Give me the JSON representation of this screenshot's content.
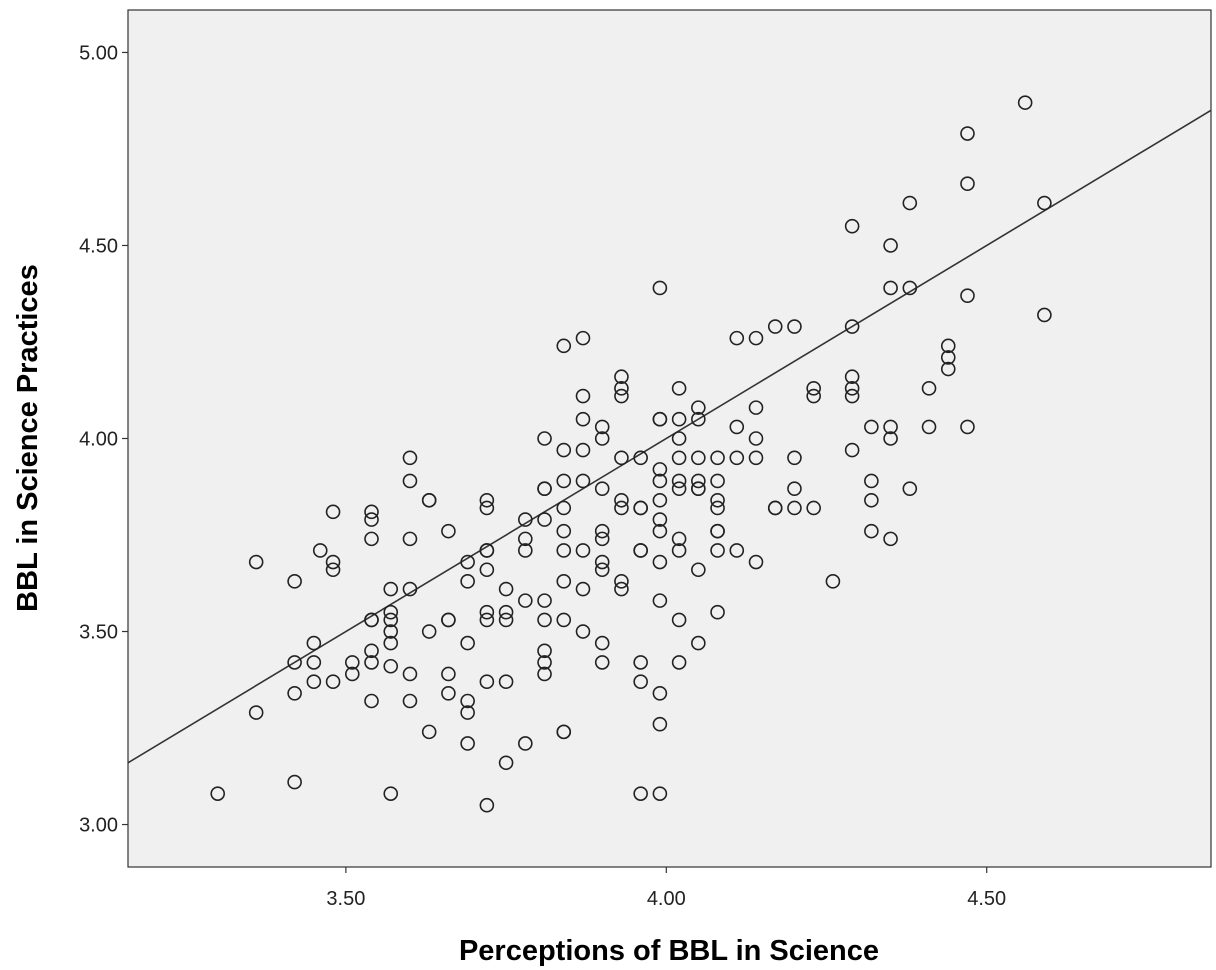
{
  "colors": {
    "page_background": "#ffffff",
    "plot_background": "#f0f0f0",
    "axis": "#333333",
    "marker_stroke": "#222222",
    "fit_line": "#333333"
  },
  "chart_data": {
    "type": "scatter",
    "title": "",
    "xlabel": "Perceptions of BBL in Science",
    "ylabel": "BBL in Science Practices",
    "xlim": [
      3.16,
      4.85
    ],
    "ylim": [
      2.89,
      5.11
    ],
    "x_ticks": [
      3.5,
      4.0,
      4.5
    ],
    "x_tick_labels": [
      "3.50",
      "4.00",
      "4.50"
    ],
    "y_ticks": [
      3.0,
      3.5,
      4.0,
      4.5,
      5.0
    ],
    "y_tick_labels": [
      "3.00",
      "3.50",
      "4.00",
      "4.50",
      "5.00"
    ],
    "grid": false,
    "legend": "none",
    "marker": "open-circle",
    "reference_line": {
      "type": "y=x",
      "label": ""
    },
    "series": [
      {
        "points": [
          [
            3.3,
            3.08
          ],
          [
            3.36,
            3.68
          ],
          [
            3.36,
            3.29
          ],
          [
            3.42,
            3.63
          ],
          [
            3.42,
            3.42
          ],
          [
            3.42,
            3.34
          ],
          [
            3.42,
            3.11
          ],
          [
            3.45,
            3.47
          ],
          [
            3.45,
            3.42
          ],
          [
            3.45,
            3.37
          ],
          [
            3.46,
            3.71
          ],
          [
            3.48,
            3.81
          ],
          [
            3.48,
            3.68
          ],
          [
            3.48,
            3.66
          ],
          [
            3.48,
            3.37
          ],
          [
            3.51,
            3.42
          ],
          [
            3.51,
            3.39
          ],
          [
            3.54,
            3.81
          ],
          [
            3.54,
            3.79
          ],
          [
            3.54,
            3.74
          ],
          [
            3.54,
            3.53
          ],
          [
            3.54,
            3.53
          ],
          [
            3.54,
            3.45
          ],
          [
            3.54,
            3.42
          ],
          [
            3.54,
            3.32
          ],
          [
            3.57,
            3.61
          ],
          [
            3.57,
            3.55
          ],
          [
            3.57,
            3.53
          ],
          [
            3.57,
            3.5
          ],
          [
            3.57,
            3.47
          ],
          [
            3.57,
            3.41
          ],
          [
            3.57,
            3.08
          ],
          [
            3.6,
            3.95
          ],
          [
            3.6,
            3.89
          ],
          [
            3.6,
            3.74
          ],
          [
            3.6,
            3.61
          ],
          [
            3.6,
            3.39
          ],
          [
            3.6,
            3.32
          ],
          [
            3.63,
            3.84
          ],
          [
            3.63,
            3.84
          ],
          [
            3.63,
            3.5
          ],
          [
            3.63,
            3.24
          ],
          [
            3.66,
            3.76
          ],
          [
            3.66,
            3.53
          ],
          [
            3.66,
            3.53
          ],
          [
            3.66,
            3.39
          ],
          [
            3.66,
            3.34
          ],
          [
            3.69,
            3.68
          ],
          [
            3.69,
            3.63
          ],
          [
            3.69,
            3.47
          ],
          [
            3.69,
            3.32
          ],
          [
            3.69,
            3.29
          ],
          [
            3.69,
            3.21
          ],
          [
            3.72,
            3.84
          ],
          [
            3.72,
            3.82
          ],
          [
            3.72,
            3.71
          ],
          [
            3.72,
            3.71
          ],
          [
            3.72,
            3.66
          ],
          [
            3.72,
            3.55
          ],
          [
            3.72,
            3.53
          ],
          [
            3.72,
            3.37
          ],
          [
            3.72,
            3.05
          ],
          [
            3.75,
            3.61
          ],
          [
            3.75,
            3.55
          ],
          [
            3.75,
            3.53
          ],
          [
            3.75,
            3.37
          ],
          [
            3.75,
            3.16
          ],
          [
            3.78,
            3.79
          ],
          [
            3.78,
            3.74
          ],
          [
            3.78,
            3.71
          ],
          [
            3.78,
            3.58
          ],
          [
            3.78,
            3.21
          ],
          [
            3.81,
            4.0
          ],
          [
            3.81,
            3.87
          ],
          [
            3.81,
            3.87
          ],
          [
            3.81,
            3.79
          ],
          [
            3.81,
            3.58
          ],
          [
            3.81,
            3.53
          ],
          [
            3.81,
            3.45
          ],
          [
            3.81,
            3.42
          ],
          [
            3.81,
            3.39
          ],
          [
            3.84,
            4.24
          ],
          [
            3.84,
            3.97
          ],
          [
            3.84,
            3.89
          ],
          [
            3.84,
            3.82
          ],
          [
            3.84,
            3.76
          ],
          [
            3.84,
            3.71
          ],
          [
            3.84,
            3.63
          ],
          [
            3.84,
            3.53
          ],
          [
            3.84,
            3.24
          ],
          [
            3.84,
            3.24
          ],
          [
            3.87,
            4.26
          ],
          [
            3.87,
            4.11
          ],
          [
            3.87,
            4.05
          ],
          [
            3.87,
            3.97
          ],
          [
            3.87,
            3.89
          ],
          [
            3.87,
            3.71
          ],
          [
            3.87,
            3.61
          ],
          [
            3.87,
            3.5
          ],
          [
            3.9,
            4.03
          ],
          [
            3.9,
            4.0
          ],
          [
            3.9,
            3.87
          ],
          [
            3.9,
            3.76
          ],
          [
            3.9,
            3.74
          ],
          [
            3.9,
            3.68
          ],
          [
            3.9,
            3.66
          ],
          [
            3.9,
            3.47
          ],
          [
            3.9,
            3.42
          ],
          [
            3.93,
            4.16
          ],
          [
            3.93,
            4.13
          ],
          [
            3.93,
            4.11
          ],
          [
            3.93,
            3.95
          ],
          [
            3.93,
            3.84
          ],
          [
            3.93,
            3.82
          ],
          [
            3.93,
            3.63
          ],
          [
            3.93,
            3.61
          ],
          [
            3.96,
            3.95
          ],
          [
            3.96,
            3.82
          ],
          [
            3.96,
            3.82
          ],
          [
            3.96,
            3.71
          ],
          [
            3.96,
            3.71
          ],
          [
            3.96,
            3.42
          ],
          [
            3.96,
            3.37
          ],
          [
            3.96,
            3.08
          ],
          [
            3.99,
            4.39
          ],
          [
            3.99,
            4.05
          ],
          [
            3.99,
            4.05
          ],
          [
            3.99,
            3.92
          ],
          [
            3.99,
            3.89
          ],
          [
            3.99,
            3.84
          ],
          [
            3.99,
            3.79
          ],
          [
            3.99,
            3.76
          ],
          [
            3.99,
            3.68
          ],
          [
            3.99,
            3.58
          ],
          [
            3.99,
            3.34
          ],
          [
            3.99,
            3.26
          ],
          [
            3.99,
            3.08
          ],
          [
            4.02,
            4.13
          ],
          [
            4.02,
            4.05
          ],
          [
            4.02,
            4.0
          ],
          [
            4.02,
            3.95
          ],
          [
            4.02,
            3.89
          ],
          [
            4.02,
            3.87
          ],
          [
            4.02,
            3.74
          ],
          [
            4.02,
            3.71
          ],
          [
            4.02,
            3.53
          ],
          [
            4.02,
            3.42
          ],
          [
            4.05,
            4.08
          ],
          [
            4.05,
            4.05
          ],
          [
            4.05,
            3.95
          ],
          [
            4.05,
            3.89
          ],
          [
            4.05,
            3.87
          ],
          [
            4.05,
            3.87
          ],
          [
            4.05,
            3.66
          ],
          [
            4.05,
            3.47
          ],
          [
            4.08,
            3.95
          ],
          [
            4.08,
            3.89
          ],
          [
            4.08,
            3.84
          ],
          [
            4.08,
            3.82
          ],
          [
            4.08,
            3.76
          ],
          [
            4.08,
            3.76
          ],
          [
            4.08,
            3.71
          ],
          [
            4.08,
            3.55
          ],
          [
            4.11,
            4.26
          ],
          [
            4.11,
            4.03
          ],
          [
            4.11,
            3.95
          ],
          [
            4.11,
            3.71
          ],
          [
            4.14,
            4.26
          ],
          [
            4.14,
            4.08
          ],
          [
            4.14,
            4.0
          ],
          [
            4.14,
            3.95
          ],
          [
            4.14,
            3.68
          ],
          [
            4.17,
            4.29
          ],
          [
            4.17,
            3.82
          ],
          [
            4.17,
            3.82
          ],
          [
            4.2,
            4.29
          ],
          [
            4.2,
            3.95
          ],
          [
            4.2,
            3.87
          ],
          [
            4.2,
            3.82
          ],
          [
            4.23,
            4.13
          ],
          [
            4.23,
            4.11
          ],
          [
            4.23,
            3.82
          ],
          [
            4.26,
            3.63
          ],
          [
            4.29,
            4.55
          ],
          [
            4.29,
            4.29
          ],
          [
            4.29,
            4.16
          ],
          [
            4.29,
            4.13
          ],
          [
            4.29,
            4.11
          ],
          [
            4.29,
            3.97
          ],
          [
            4.32,
            4.03
          ],
          [
            4.32,
            3.89
          ],
          [
            4.32,
            3.84
          ],
          [
            4.32,
            3.76
          ],
          [
            4.35,
            4.5
          ],
          [
            4.35,
            4.39
          ],
          [
            4.35,
            4.03
          ],
          [
            4.35,
            4.0
          ],
          [
            4.35,
            3.74
          ],
          [
            4.38,
            4.61
          ],
          [
            4.38,
            4.39
          ],
          [
            4.38,
            3.87
          ],
          [
            4.41,
            4.13
          ],
          [
            4.41,
            4.03
          ],
          [
            4.44,
            4.24
          ],
          [
            4.44,
            4.21
          ],
          [
            4.44,
            4.18
          ],
          [
            4.47,
            4.79
          ],
          [
            4.47,
            4.66
          ],
          [
            4.47,
            4.37
          ],
          [
            4.47,
            4.03
          ],
          [
            4.56,
            4.87
          ],
          [
            4.59,
            4.61
          ],
          [
            4.59,
            4.32
          ]
        ]
      }
    ]
  }
}
